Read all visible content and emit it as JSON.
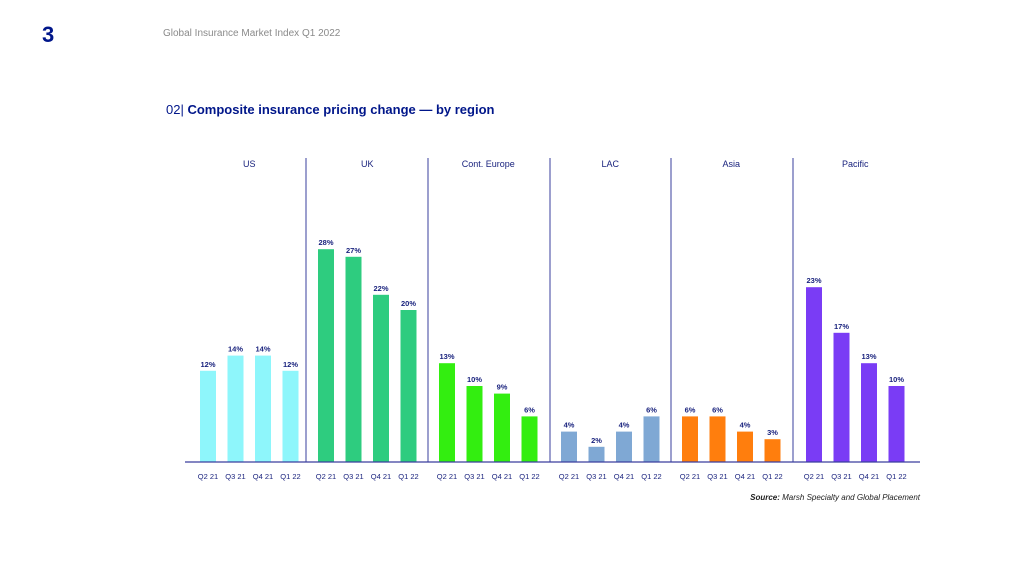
{
  "page_number": "3",
  "header": "Global Insurance Market Index Q1 2022",
  "title": {
    "number": "02|",
    "text": "Composite insurance pricing change — by region"
  },
  "source": {
    "label": "Source:",
    "text": "Marsh Specialty and Global Placement"
  },
  "colors": {
    "title": "#00168a",
    "divider": "#3a3f9e",
    "axis": "#3a3f9e",
    "label": "#1a237e"
  },
  "chart_data": {
    "type": "bar",
    "title": "Composite insurance pricing change — by region",
    "xlabel": "",
    "ylabel": "",
    "ylim": [
      0,
      28
    ],
    "unit": "%",
    "groups": [
      {
        "name": "US",
        "color": "#8ef6fb",
        "categories": [
          "Q2 21",
          "Q3 21",
          "Q4 21",
          "Q1 22"
        ],
        "values": [
          12,
          14,
          14,
          12
        ]
      },
      {
        "name": "UK",
        "color": "#2ecc7f",
        "categories": [
          "Q2 21",
          "Q3 21",
          "Q4 21",
          "Q1 22"
        ],
        "values": [
          28,
          27,
          22,
          20
        ]
      },
      {
        "name": "Cont. Europe",
        "color": "#33ee10",
        "categories": [
          "Q2 21",
          "Q3 21",
          "Q4 21",
          "Q1 22"
        ],
        "values": [
          13,
          10,
          9,
          6
        ]
      },
      {
        "name": "LAC",
        "color": "#7fa8d4",
        "categories": [
          "Q2 21",
          "Q3 21",
          "Q4 21",
          "Q1 22"
        ],
        "values": [
          4,
          2,
          4,
          6
        ]
      },
      {
        "name": "Asia",
        "color": "#ff7e0d",
        "categories": [
          "Q2 21",
          "Q3 21",
          "Q4 21",
          "Q1 22"
        ],
        "values": [
          6,
          6,
          4,
          3
        ]
      },
      {
        "name": "Pacific",
        "color": "#7a3cf5",
        "categories": [
          "Q2 21",
          "Q3 21",
          "Q4 21",
          "Q1 22"
        ],
        "values": [
          23,
          17,
          13,
          10
        ]
      }
    ]
  }
}
